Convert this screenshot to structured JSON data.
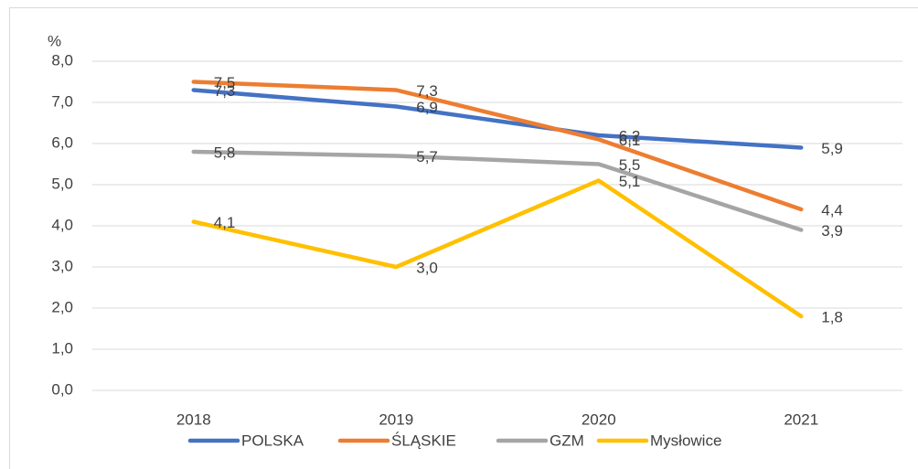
{
  "chart_data": {
    "type": "line",
    "y_axis_label": "%",
    "categories": [
      "2018",
      "2019",
      "2020",
      "2021"
    ],
    "series": [
      {
        "name": "POLSKA",
        "color": "#4472c4",
        "values": [
          7.3,
          6.9,
          6.2,
          5.9
        ],
        "value_labels": [
          "7,3",
          "6,9",
          "6,2",
          "5,9"
        ]
      },
      {
        "name": "ŚLĄSKIE",
        "color": "#ed7d31",
        "values": [
          7.5,
          7.3,
          6.1,
          4.4
        ],
        "value_labels": [
          "7,5",
          "7,3",
          "6,1",
          "4,4"
        ]
      },
      {
        "name": "GZM",
        "color": "#a5a5a5",
        "values": [
          5.8,
          5.7,
          5.5,
          3.9
        ],
        "value_labels": [
          "5,8",
          "5,7",
          "5,5",
          "3,9"
        ]
      },
      {
        "name": "Mysłowice",
        "color": "#ffc000",
        "values": [
          4.1,
          3.0,
          5.1,
          1.8
        ],
        "value_labels": [
          "4,1",
          "3,0",
          "5,1",
          "1,8"
        ]
      }
    ],
    "ylim": [
      0,
      8
    ],
    "yticks": [
      {
        "value": 0,
        "label": "0,0"
      },
      {
        "value": 1,
        "label": "1,0"
      },
      {
        "value": 2,
        "label": "2,0"
      },
      {
        "value": 3,
        "label": "3,0"
      },
      {
        "value": 4,
        "label": "4,0"
      },
      {
        "value": 5,
        "label": "5,0"
      },
      {
        "value": 6,
        "label": "6,0"
      },
      {
        "value": 7,
        "label": "7,0"
      },
      {
        "value": 8,
        "label": "8,0"
      }
    ],
    "grid": true,
    "legend": "bottom"
  }
}
